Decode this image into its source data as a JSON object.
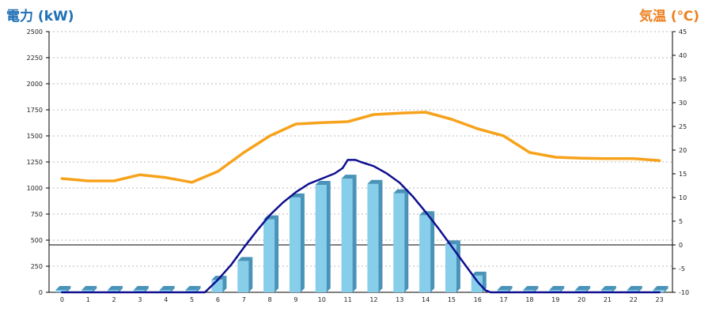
{
  "header": {
    "left_axis_title": "電力 (kW)",
    "right_axis_title": "気温 (℃)"
  },
  "colors": {
    "left_axis_title": "#1f6fb5",
    "right_axis_title": "#ee7f1f",
    "bar_front": "#87ceeb",
    "bar_side": "#4a93b8",
    "bar_top": "#b5def0",
    "power_line": "#0f0f8f",
    "temperature_line": "#f7a21b",
    "grid": "#bbbbbb",
    "zero_line": "#000000"
  },
  "chart_data": {
    "type": "bar",
    "categories": [
      "0",
      "1",
      "2",
      "3",
      "4",
      "5",
      "6",
      "7",
      "8",
      "9",
      "10",
      "11",
      "12",
      "13",
      "14",
      "15",
      "16",
      "17",
      "18",
      "19",
      "20",
      "21",
      "22",
      "23"
    ],
    "left_axis": {
      "range": [
        0,
        2500
      ],
      "ticks": [
        0,
        250,
        500,
        750,
        1000,
        1250,
        1500,
        1750,
        2000,
        2250,
        2500
      ]
    },
    "right_axis": {
      "range": [
        -10,
        45
      ],
      "ticks": [
        -10,
        -5,
        0,
        5,
        10,
        15,
        20,
        25,
        30,
        35,
        40,
        45
      ]
    },
    "grid": true,
    "series": [
      {
        "type": "bar",
        "axis": "left",
        "values": [
          0,
          0,
          0,
          0,
          0,
          0,
          120,
          300,
          700,
          910,
          1030,
          1090,
          1040,
          950,
          740,
          460,
          160,
          0,
          0,
          0,
          0,
          0,
          0,
          0
        ]
      },
      {
        "type": "line",
        "axis": "left",
        "x": [
          0,
          1,
          2,
          3,
          4,
          5,
          5.5,
          6,
          6.5,
          7,
          7.5,
          8,
          8.5,
          9,
          9.5,
          10,
          10.5,
          10.8,
          11,
          11.3,
          11.5,
          12,
          12.5,
          13,
          13.5,
          14,
          14.5,
          15,
          15.5,
          16,
          16.3,
          16.5,
          17,
          18,
          19,
          20,
          21,
          22,
          23
        ],
        "y": [
          0,
          0,
          0,
          0,
          0,
          0,
          0,
          120,
          260,
          430,
          590,
          740,
          860,
          960,
          1040,
          1090,
          1140,
          1190,
          1270,
          1270,
          1250,
          1210,
          1140,
          1050,
          920,
          770,
          610,
          440,
          270,
          100,
          20,
          0,
          0,
          0,
          0,
          0,
          0,
          0,
          0
        ]
      },
      {
        "type": "line",
        "axis": "right",
        "x": [
          0,
          1,
          2,
          3,
          4,
          5,
          6,
          7,
          8,
          9,
          10,
          11,
          12,
          13,
          14,
          15,
          16,
          17,
          18,
          19,
          20,
          21,
          22,
          23
        ],
        "y": [
          14,
          13.5,
          13.5,
          14.8,
          14.2,
          13.2,
          15.5,
          19.5,
          23,
          25.5,
          25.8,
          26,
          27.5,
          27.8,
          28,
          26.5,
          24.5,
          23,
          19.5,
          18.5,
          18.3,
          18.2,
          18.2,
          17.8
        ]
      }
    ]
  }
}
